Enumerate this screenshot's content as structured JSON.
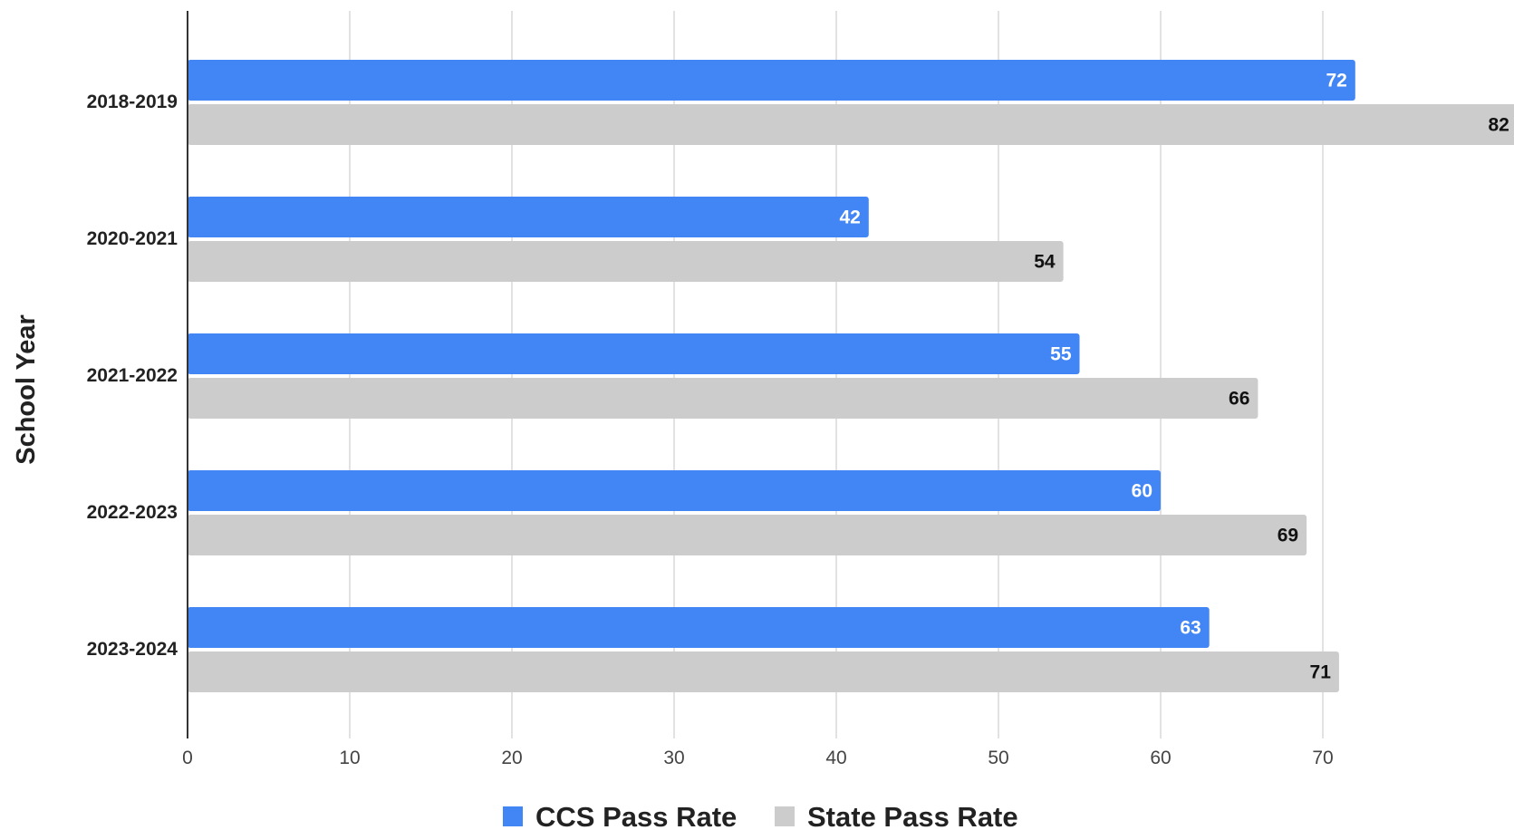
{
  "chart_data": {
    "type": "bar",
    "orientation": "horizontal",
    "categories": [
      "2018-2019",
      "2020-2021",
      "2021-2022",
      "2022-2023",
      "2023-2024"
    ],
    "series": [
      {
        "name": "CCS Pass Rate",
        "color": "#4285f4",
        "label_color": "#ffffff",
        "values": [
          72,
          42,
          55,
          60,
          63
        ]
      },
      {
        "name": "State Pass Rate",
        "color": "#cccccc",
        "label_color": "#111111",
        "values": [
          82,
          54,
          66,
          69,
          71
        ]
      }
    ],
    "xticks": [
      "0",
      "10",
      "20",
      "30",
      "40",
      "50",
      "60",
      "70"
    ],
    "xlim": [
      0,
      81
    ],
    "ylabel": "School Year",
    "xlabel": "",
    "grid": true,
    "legend": "bottom",
    "data_labels": true
  }
}
